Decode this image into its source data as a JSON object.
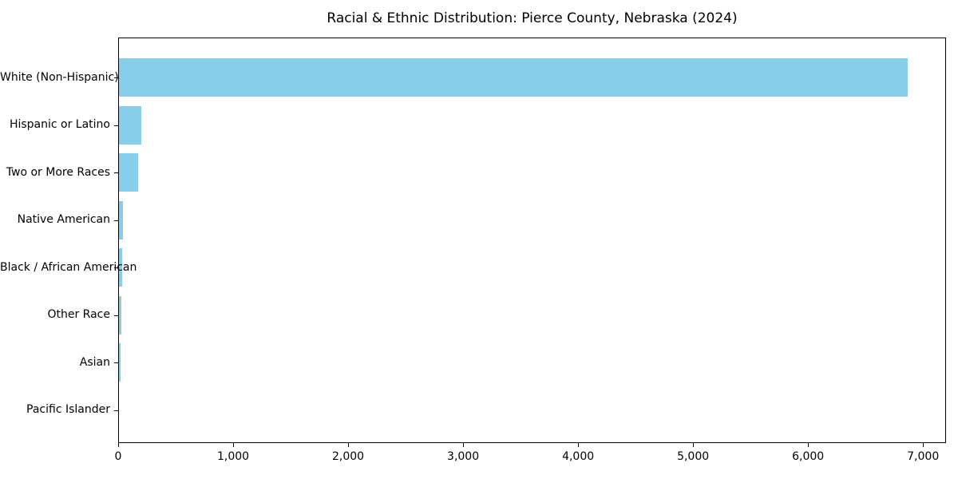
{
  "chart_data": {
    "type": "bar",
    "orientation": "horizontal",
    "title": "Racial & Ethnic Distribution: Pierce County, Nebraska (2024)",
    "categories": [
      "White (Non-Hispanic)",
      "Hispanic or Latino",
      "Two or More Races",
      "Native American",
      "Black / African American",
      "Other Race",
      "Asian",
      "Pacific Islander"
    ],
    "values": [
      6860,
      195,
      170,
      32,
      28,
      20,
      13,
      0
    ],
    "xlabel": "",
    "ylabel": "",
    "xlim": [
      0,
      7200
    ],
    "xticks": [
      0,
      1000,
      2000,
      3000,
      4000,
      5000,
      6000,
      7000
    ],
    "xtick_labels": [
      "0",
      "1,000",
      "2,000",
      "3,000",
      "4,000",
      "5,000",
      "6,000",
      "7,000"
    ],
    "bar_color": "#87CEEB",
    "text_color": "#000000",
    "grid": false,
    "legend": null
  }
}
